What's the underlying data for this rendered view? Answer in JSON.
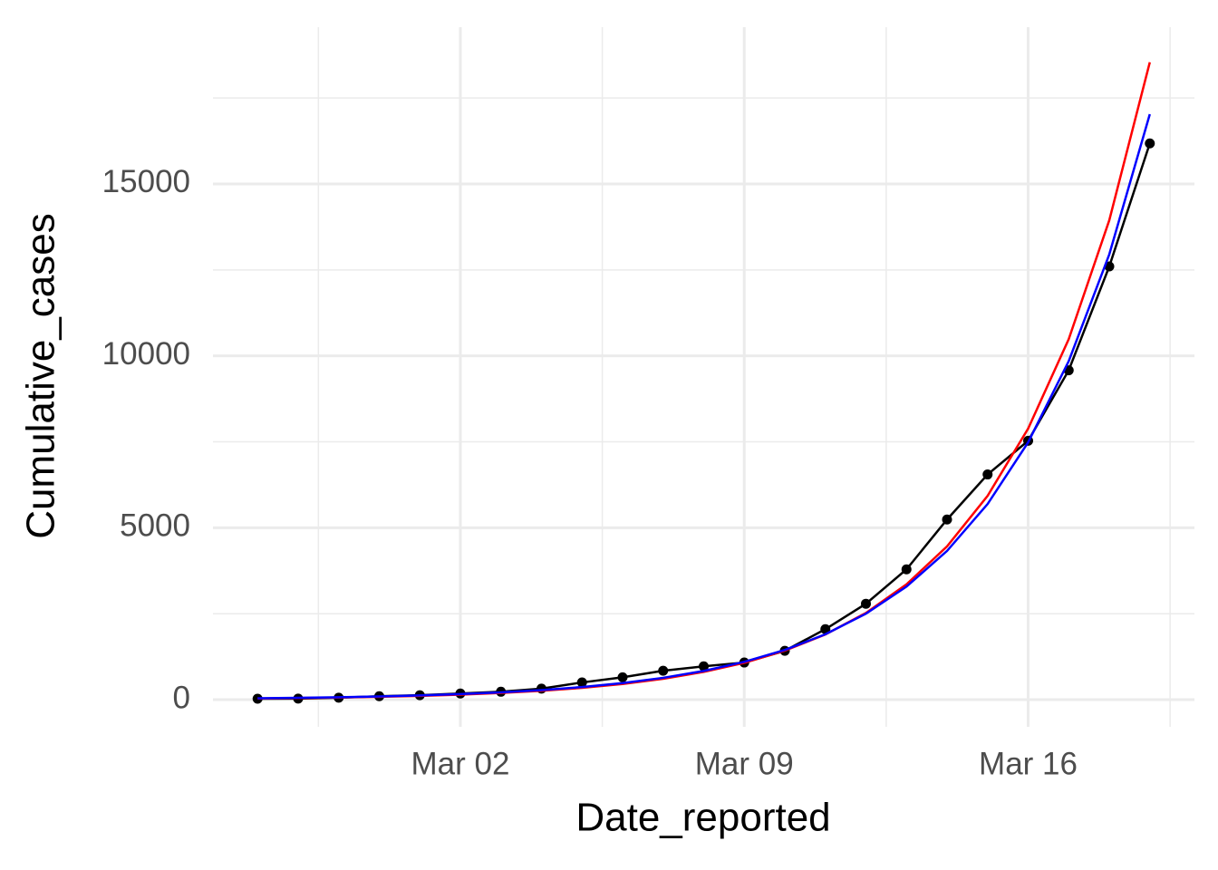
{
  "chart_data": {
    "type": "line",
    "x_label": "Date_reported",
    "y_label": "Cumulative_cases",
    "categories": [
      null,
      null,
      null,
      null,
      null,
      "Mar 02",
      null,
      null,
      null,
      null,
      null,
      null,
      "Mar 09",
      null,
      null,
      null,
      null,
      null,
      null,
      "Mar 16",
      null,
      null,
      null
    ],
    "ylim": [
      -790,
      19560
    ],
    "yticks": [
      0,
      5000,
      10000,
      15000
    ],
    "yminor": [
      2500,
      7500,
      12500,
      17500
    ],
    "grid": true,
    "series": [
      {
        "color": "#000000",
        "markers": true,
        "values": [
          27,
          30,
          58,
          100,
          130,
          180,
          230,
          320,
          500,
          650,
          840,
          970,
          1080,
          1420,
          2050,
          2790,
          3790,
          5240,
          6550,
          7530,
          9580,
          12600,
          16180
        ]
      },
      {
        "color": "#ff0000",
        "markers": false,
        "values": [
          35,
          46.5,
          61.9,
          82.3,
          109,
          146,
          194,
          258,
          343,
          456,
          606,
          806,
          1072,
          1426,
          1896,
          2521,
          3353,
          4459,
          5929,
          7885,
          10485,
          13943,
          18540
        ]
      },
      {
        "color": "#0000ff",
        "markers": false,
        "values": [
          41,
          53.9,
          70.9,
          93.3,
          122.7,
          161,
          212,
          279,
          367,
          483,
          635,
          835,
          1099,
          1445,
          1901,
          2500,
          3289,
          4326,
          5690,
          7485,
          9845,
          12950,
          17030
        ]
      }
    ]
  }
}
